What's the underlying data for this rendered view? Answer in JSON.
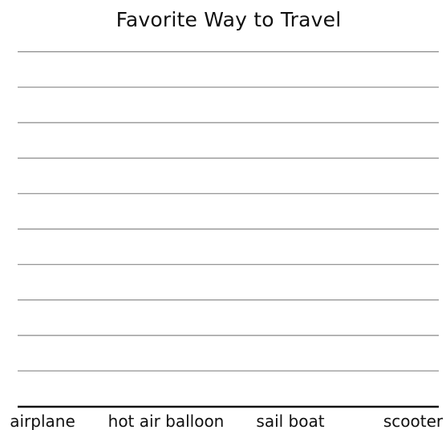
{
  "chart_data": {
    "type": "bar",
    "title": "Favorite Way to Travel",
    "xlabel": "",
    "ylabel": "",
    "categories": [
      "airplane",
      "hot air balloon",
      "sail boat",
      "scooter"
    ],
    "values": [
      null,
      null,
      null,
      null
    ],
    "grid": true,
    "grid_line_count": 10,
    "colors": {
      "grid": "#8a8a8a",
      "axis": "#111111",
      "text": "#111111"
    }
  }
}
